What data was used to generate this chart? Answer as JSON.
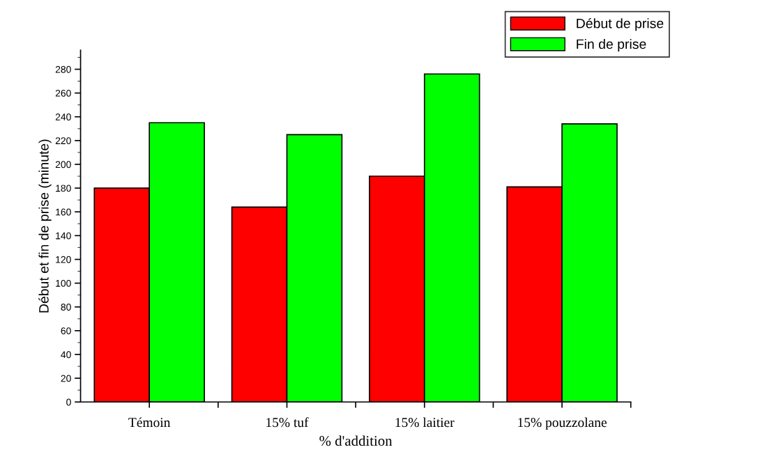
{
  "chart_data": {
    "type": "bar",
    "xlabel": "% d'addition",
    "ylabel": "Début et fin de prise (minute)",
    "categories": [
      "Témoin",
      "15% tuf",
      "15% laitier",
      "15% pouzzolane"
    ],
    "series": [
      {
        "name": "Début de prise",
        "color": "#ff0000",
        "values": [
          180,
          164,
          190,
          181
        ]
      },
      {
        "name": "Fin de prise",
        "color": "#00ff00",
        "values": [
          235,
          225,
          276,
          234
        ]
      }
    ],
    "ylim": [
      0,
      296
    ],
    "yticks": [
      0,
      20,
      40,
      60,
      80,
      100,
      120,
      140,
      160,
      180,
      200,
      220,
      240,
      260,
      280
    ],
    "grid": false,
    "legend": "top right"
  }
}
